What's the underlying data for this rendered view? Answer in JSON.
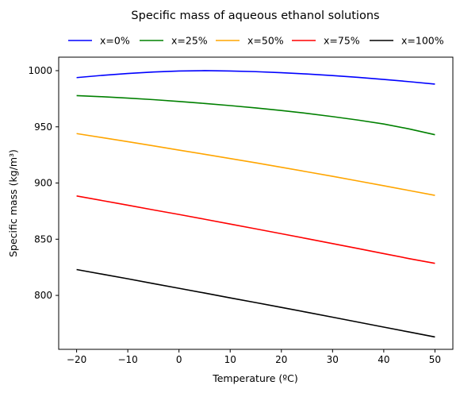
{
  "chart_data": {
    "type": "line",
    "title": "Specific mass of aqueous ethanol solutions",
    "xlabel": "Temperature (ºC)",
    "ylabel": "Specific mass (kg/m³)",
    "xlim": [
      -23.5,
      53.5
    ],
    "ylim": [
      752,
      1012
    ],
    "xticks": [
      -20,
      -10,
      0,
      10,
      20,
      30,
      40,
      50
    ],
    "xtick_labels": [
      "−20",
      "−10",
      "0",
      "10",
      "20",
      "30",
      "40",
      "50"
    ],
    "yticks": [
      800,
      850,
      900,
      950,
      1000
    ],
    "ytick_labels": [
      "800",
      "850",
      "900",
      "950",
      "1000"
    ],
    "grid": false,
    "legend_position": "top-center",
    "x": [
      -20,
      -15,
      -10,
      -5,
      0,
      5,
      10,
      15,
      20,
      25,
      30,
      35,
      40,
      45,
      50
    ],
    "series": [
      {
        "name": "x=0%",
        "color": "#0000ff",
        "values": [
          993.8,
          995.8,
          997.5,
          998.8,
          999.7,
          1000.0,
          999.7,
          999.1,
          998.2,
          997.0,
          995.6,
          994.0,
          992.2,
          990.2,
          988.0
        ]
      },
      {
        "name": "x=25%",
        "color": "#008000",
        "values": [
          977.8,
          976.8,
          975.6,
          974.2,
          972.6,
          970.8,
          968.9,
          966.8,
          964.5,
          962.0,
          959.1,
          956.0,
          952.5,
          948.1,
          943.0
        ]
      },
      {
        "name": "x=50%",
        "color": "#ffa500",
        "values": [
          944.0,
          940.4,
          936.8,
          933.1,
          929.3,
          925.6,
          921.8,
          918.0,
          914.0,
          910.0,
          906.0,
          901.8,
          897.6,
          893.3,
          889.0
        ]
      },
      {
        "name": "x=75%",
        "color": "#ff0000",
        "values": [
          888.5,
          884.4,
          880.3,
          876.1,
          872.0,
          867.8,
          863.5,
          859.2,
          854.9,
          850.5,
          846.1,
          841.7,
          837.2,
          832.7,
          828.5
        ]
      },
      {
        "name": "x=100%",
        "color": "#000000",
        "values": [
          823.0,
          818.9,
          814.8,
          810.5,
          806.3,
          802.1,
          797.8,
          793.6,
          789.3,
          785.0,
          780.6,
          776.2,
          771.8,
          767.4,
          763.0
        ]
      }
    ]
  }
}
